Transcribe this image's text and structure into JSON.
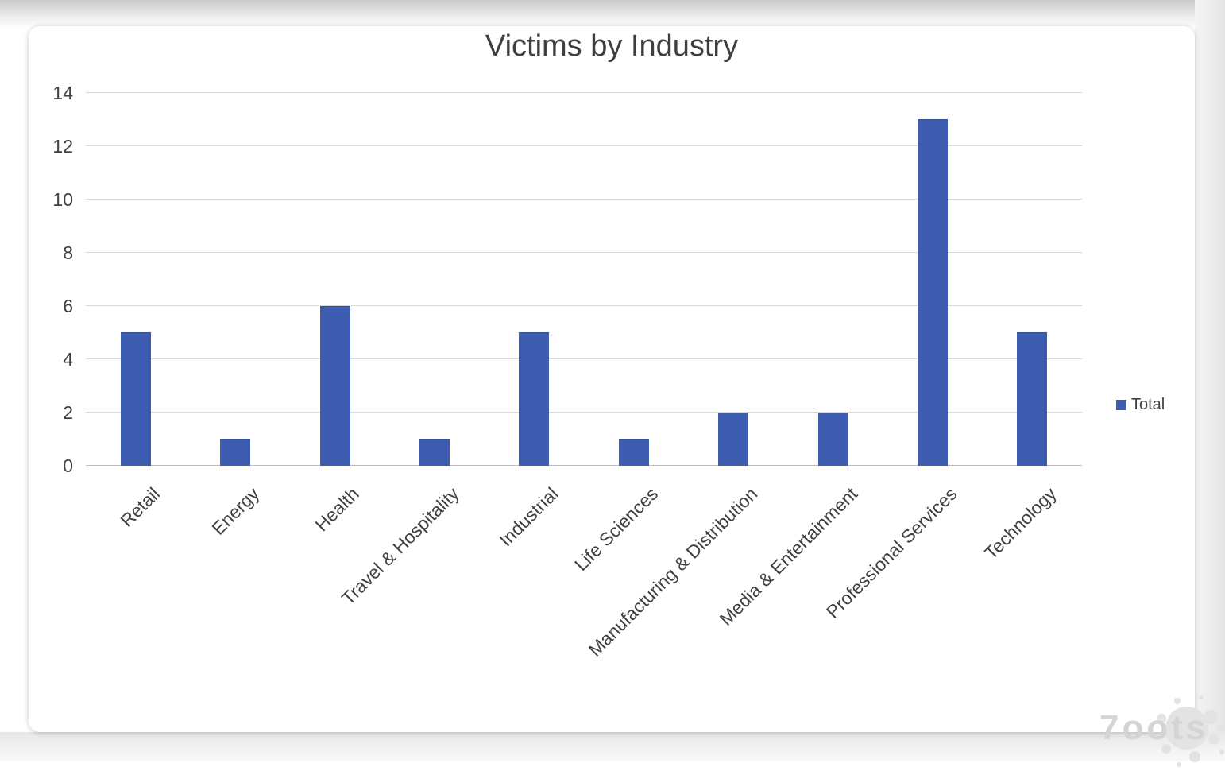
{
  "watermark": {
    "text": "7oots"
  },
  "chart_data": {
    "type": "bar",
    "title": "Victims by Industry",
    "categories": [
      "Retail",
      "Energy",
      "Health",
      "Travel & Hospitality",
      "Industrial",
      "Life Sciences",
      "Manufacturing & Distribution",
      "Media & Entertainment",
      "Professional Services",
      "Technology"
    ],
    "series": [
      {
        "name": "Total",
        "values": [
          5,
          1,
          6,
          1,
          5,
          1,
          2,
          2,
          13,
          5
        ]
      }
    ],
    "xlabel": "",
    "ylabel": "",
    "ylim": [
      0,
      14
    ],
    "yticks": [
      0,
      2,
      4,
      6,
      8,
      10,
      12,
      14
    ],
    "grid": true,
    "legend_position": "right",
    "x_label_rotation_deg": -45,
    "colors": {
      "bar": "#3f5db0",
      "bar_edge": "#33519b",
      "gridline": "#d9d9d9",
      "axis_line": "#bfbfbf",
      "text": "#404040",
      "title": "#3f3f3f",
      "watermark": "#d4d4d4"
    }
  }
}
